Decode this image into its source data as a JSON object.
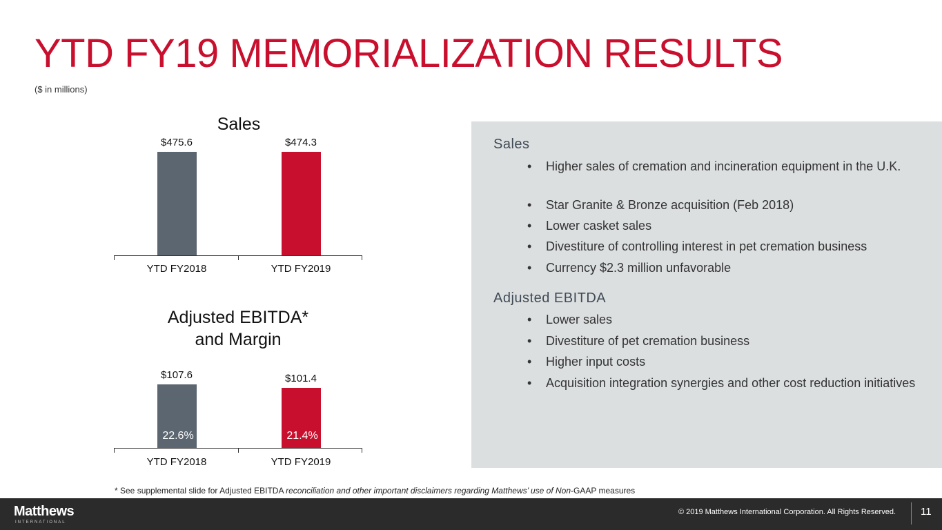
{
  "title": "YTD FY19 MEMORIALIZATION RESULTS",
  "subtitle": "($ in millions)",
  "chart_data": [
    {
      "type": "bar",
      "title": "Sales",
      "categories": [
        "YTD FY2018",
        "YTD FY2019"
      ],
      "values": [
        475.6,
        474.3
      ],
      "value_labels": [
        "$475.6",
        "$474.3"
      ],
      "colors": [
        "#5b6670",
        "#c8102e"
      ],
      "ylim": [
        0,
        500
      ]
    },
    {
      "type": "bar",
      "title": "Adjusted EBITDA* and Margin",
      "title_lines": [
        "Adjusted EBITDA*",
        "and Margin"
      ],
      "categories": [
        "YTD FY2018",
        "YTD FY2019"
      ],
      "values": [
        107.6,
        101.4
      ],
      "value_labels": [
        "$107.6",
        "$101.4"
      ],
      "margins": [
        "22.6%",
        "21.4%"
      ],
      "colors": [
        "#5b6670",
        "#c8102e"
      ],
      "ylim": [
        0,
        120
      ]
    }
  ],
  "panel": {
    "sales_heading": "Sales",
    "sales_bullets": [
      "Higher sales of cremation and incineration equipment in the U.K.",
      "Star Granite & Bronze acquisition (Feb 2018)",
      "Lower casket sales",
      "Divestiture of controlling interest in pet cremation business",
      "Currency $2.3 million unfavorable"
    ],
    "ebitda_heading": "Adjusted EBITDA",
    "ebitda_bullets": [
      "Lower sales",
      "Divestiture of pet cremation business",
      "Higher input costs",
      "Acquisition integration synergies and other cost reduction initiatives"
    ],
    "bullet_char": "•"
  },
  "footnote": {
    "part1": "* See supplemental slide for Adjusted EBITDA ",
    "part2": "reconciliation and other important disclaimers regarding Matthews’ use of Non",
    "part3": "-GAAP measures"
  },
  "footer": {
    "logo": "Matthews",
    "logo_sub": "INTERNATIONAL",
    "copyright": "© 2019 Matthews International Corporation. All Rights Reserved.",
    "page": "11"
  }
}
